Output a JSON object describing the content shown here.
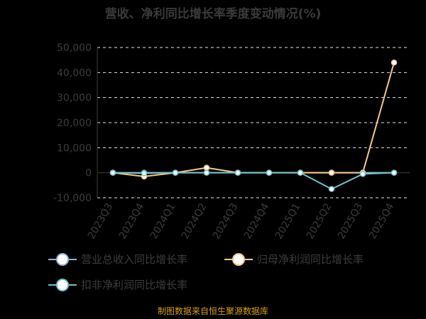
{
  "chart_data": {
    "type": "line",
    "title": "营收、净利同比增长率季度变动情况(%)",
    "categories": [
      "2023Q3",
      "2023Q4",
      "2024Q1",
      "2024Q2",
      "2024Q3",
      "2024Q4",
      "2025Q1",
      "2025Q2",
      "2025Q3",
      "2025Q4"
    ],
    "yticks": [
      "50,000",
      "40,000",
      "30,000",
      "20,000",
      "10,000",
      "0",
      "-10,000"
    ],
    "ylim": [
      -10000,
      50000
    ],
    "grid": true,
    "legend_position": "bottom",
    "series": [
      {
        "name": "营业总收入同比增长率",
        "color": "#8fb4d6",
        "values": [
          0,
          0,
          0,
          0,
          0,
          0,
          0,
          0,
          0,
          0
        ]
      },
      {
        "name": "归母净利润同比增长率",
        "color": "#f5c98a",
        "values": [
          0,
          -1500,
          0,
          2000,
          0,
          0,
          0,
          0,
          0,
          44000
        ]
      },
      {
        "name": "扣非净利润同比增长率",
        "color": "#6fc3c8",
        "values": [
          0,
          -200,
          0,
          0,
          0,
          0,
          0,
          -6500,
          -500,
          0
        ]
      }
    ]
  },
  "source_text": "制图数据来自恒生聚源数据库"
}
